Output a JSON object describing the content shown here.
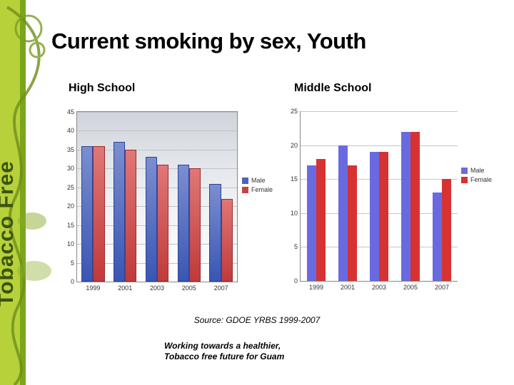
{
  "title": "Current smoking by sex, Youth",
  "left_subtitle": "High School",
  "right_subtitle": "Middle School",
  "source": "Source:  GDOE YRBS 1999-2007",
  "tagline_line1": "Working towards a healthier,",
  "tagline_line2": "Tobacco free future for Guam",
  "colors": {
    "hs_male": "#4a63bd",
    "hs_female": "#c14545",
    "ms_male": "#6a6ae0",
    "ms_female": "#d63232",
    "grid": "#c7c7c7",
    "axis": "#888888"
  },
  "hs_chart": {
    "type": "bar",
    "ylim": [
      0,
      45
    ],
    "ytick_step": 5,
    "categories": [
      "1999",
      "2001",
      "2003",
      "2005",
      "2007"
    ],
    "series": [
      {
        "name": "Male",
        "color": "#4a63bd",
        "values": [
          36,
          37,
          33,
          31,
          26
        ]
      },
      {
        "name": "Female",
        "color": "#c14545",
        "values": [
          36,
          35,
          31,
          30,
          22
        ]
      }
    ],
    "bar_width_ratio": 0.36,
    "background": "gradient",
    "grid_color": "#bfc4cc",
    "tick_fontsize": 9
  },
  "ms_chart": {
    "type": "bar",
    "ylim": [
      0,
      25
    ],
    "ytick_step": 5,
    "categories": [
      "1999",
      "2001",
      "2003",
      "2005",
      "2007"
    ],
    "series": [
      {
        "name": "Male",
        "color": "#6a6ae0",
        "values": [
          17,
          20,
          19,
          22,
          13
        ]
      },
      {
        "name": "Female",
        "color": "#d63232",
        "values": [
          18,
          17,
          19,
          22,
          15
        ]
      }
    ],
    "bar_width_ratio": 0.3,
    "background": "#ffffff",
    "grid_color": "#c7c7c7",
    "tick_fontsize": 9
  },
  "legend": {
    "male": "Male",
    "female": "Female"
  }
}
